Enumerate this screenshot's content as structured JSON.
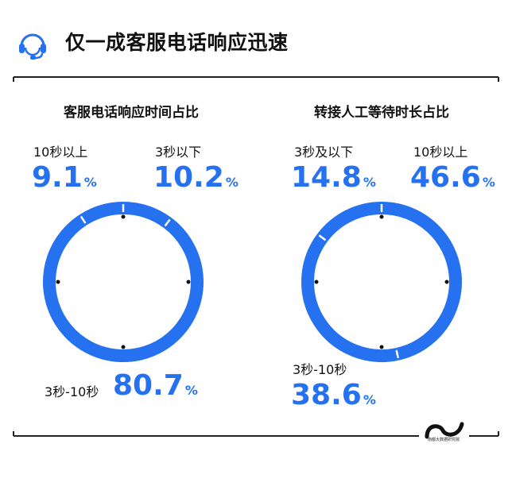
{
  "page": {
    "title": "仅一成客服电话响应迅速",
    "logo_text": "南都大数据研究院",
    "accent_color": "#2571f0",
    "icon": "headset-icon"
  },
  "chart_data": [
    {
      "type": "pie",
      "style": "donut-ring",
      "title": "客服电话响应时间占比",
      "unit": "%",
      "slices": [
        {
          "name": "3秒以下",
          "label": "3秒以下",
          "value": 10.2,
          "display": "10.2"
        },
        {
          "name": "3秒-10秒",
          "label": "3秒-10秒",
          "value": 80.7,
          "display": "80.7"
        },
        {
          "name": "10秒以上",
          "label": "10秒以上",
          "value": 9.1,
          "display": "9.1"
        }
      ]
    },
    {
      "type": "pie",
      "style": "donut-ring",
      "title": "转接人工等待时长占比",
      "unit": "%",
      "slices": [
        {
          "name": "10秒以上",
          "label": "10秒以上",
          "value": 46.6,
          "display": "46.6"
        },
        {
          "name": "3秒-10秒",
          "label": "3秒-10秒",
          "value": 38.6,
          "display": "38.6"
        },
        {
          "name": "3秒及以下",
          "label": "3秒及以下",
          "value": 14.8,
          "display": "14.8"
        }
      ]
    }
  ]
}
